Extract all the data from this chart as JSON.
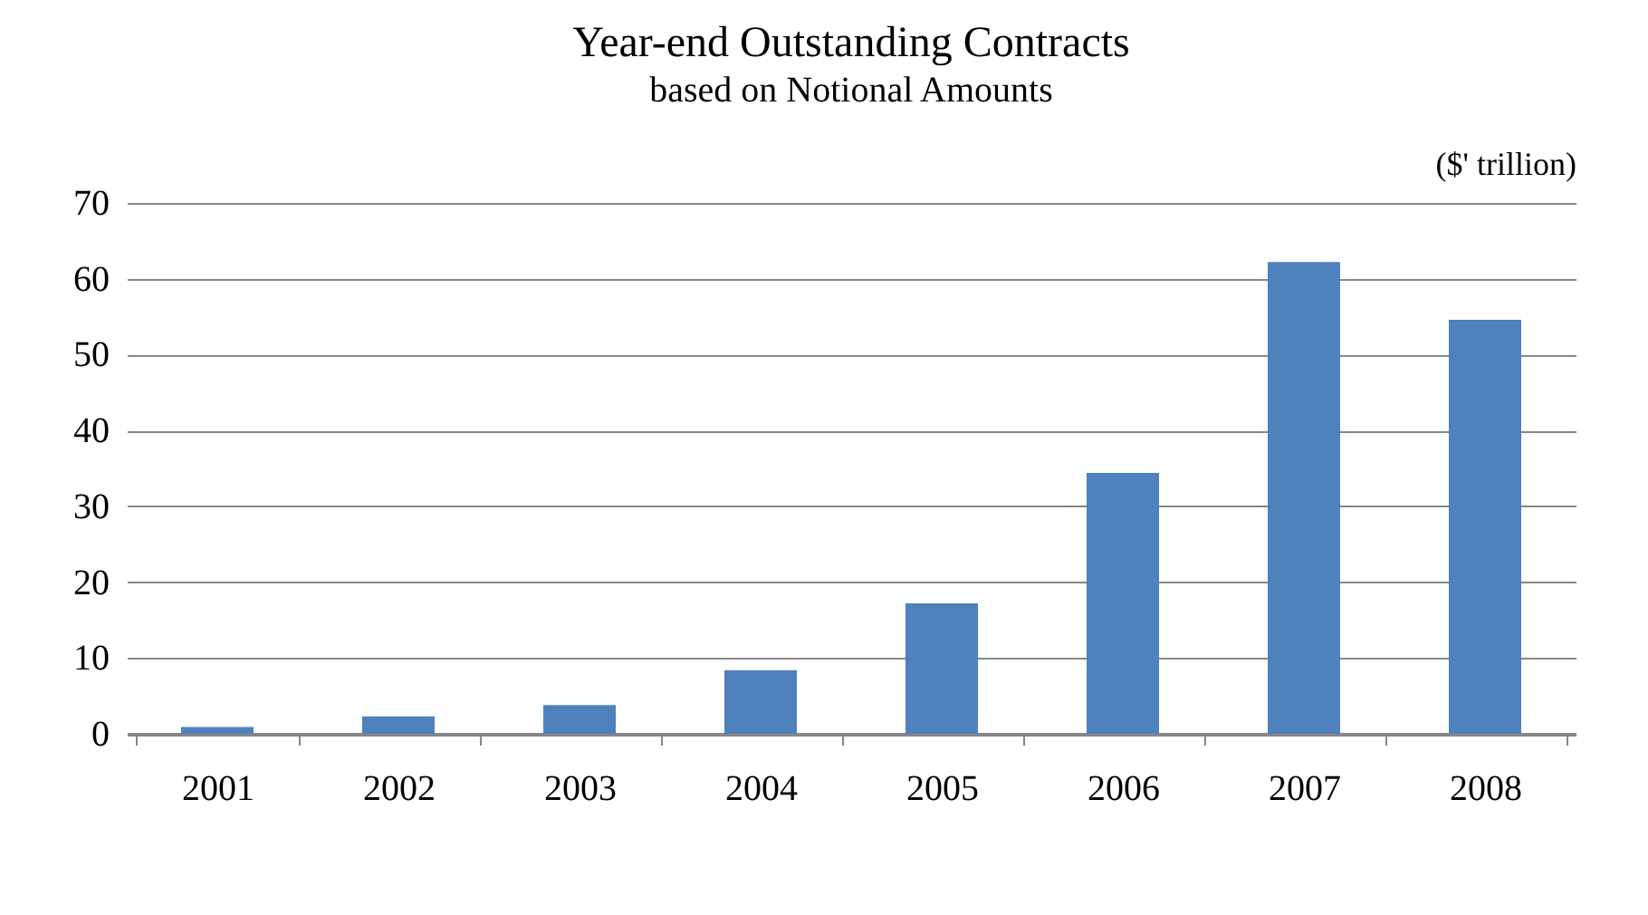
{
  "chart_data": {
    "type": "bar",
    "title": "Year-end Outstanding Contracts",
    "subtitle": "based on Notional Amounts",
    "ylabel": "($' trillion)",
    "categories": [
      "2001",
      "2002",
      "2003",
      "2004",
      "2005",
      "2006",
      "2007",
      "2008"
    ],
    "values": [
      0.9,
      2.3,
      3.8,
      8.4,
      17.2,
      34.4,
      62.2,
      54.6
    ],
    "color": "#4f81bd",
    "ylim": [
      0,
      70
    ],
    "yticks": [
      0,
      10,
      20,
      30,
      40,
      50,
      60,
      70
    ],
    "grid": "y"
  }
}
